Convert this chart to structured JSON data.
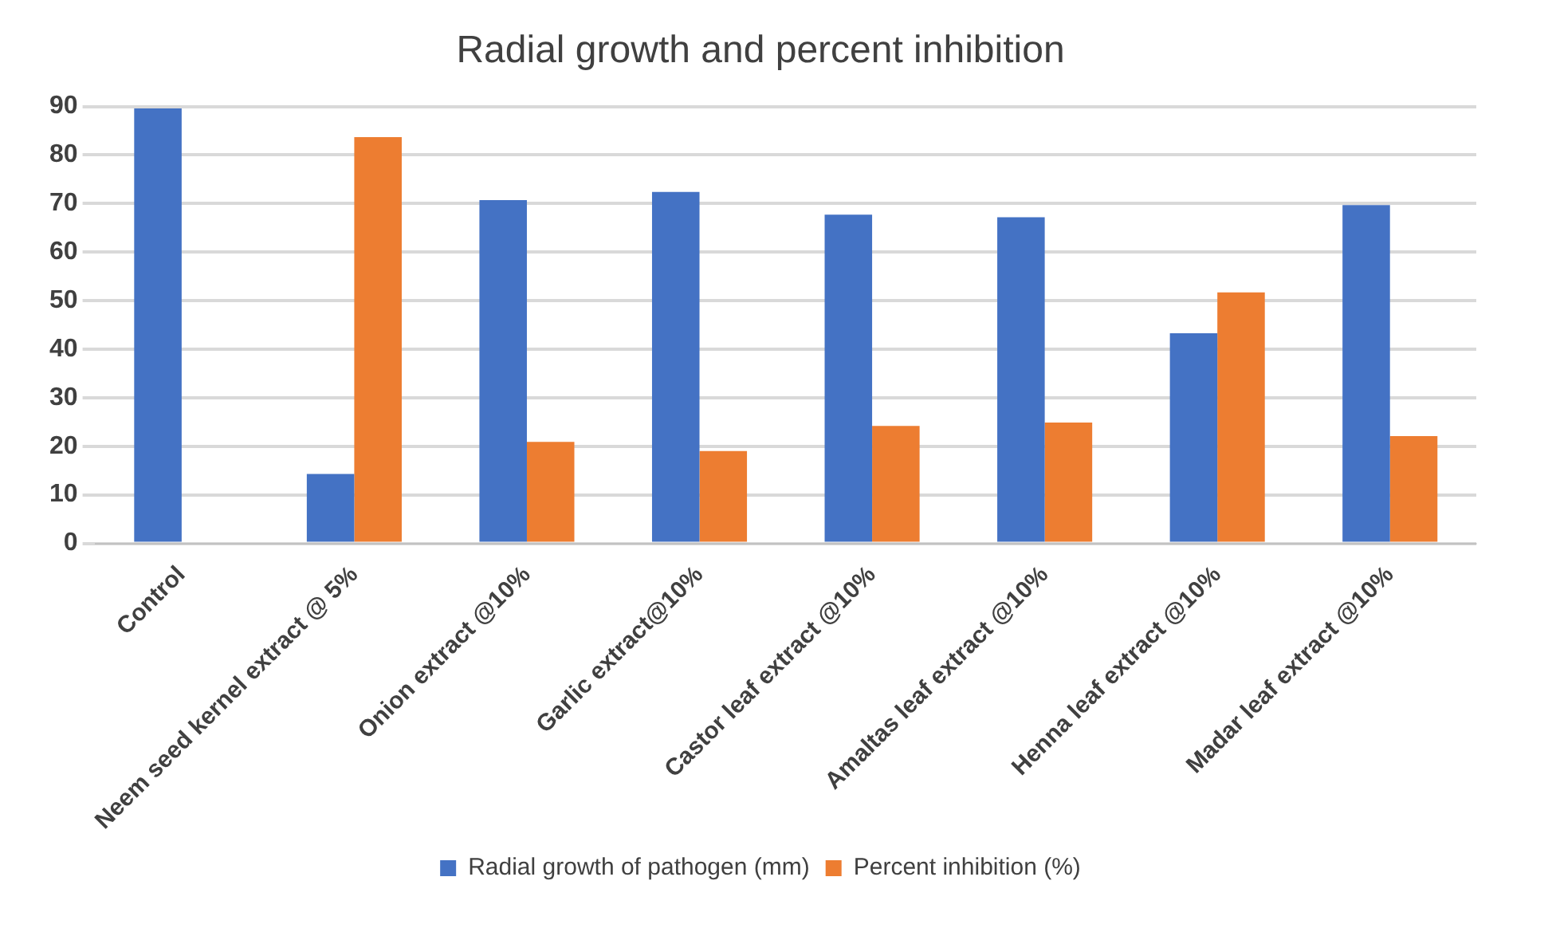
{
  "chart_data": {
    "type": "bar",
    "title": "Radial growth and percent inhibition",
    "categories": [
      "Control",
      "Neem seed kernel extract @ 5%",
      "Onion extract @10%",
      "Garlic extract@10%",
      "Castor leaf extract @10%",
      "Amaltas leaf extract @10%",
      "Henna leaf extract @10%",
      "Madar leaf extract @10%"
    ],
    "series": [
      {
        "name": "Radial growth of pathogen (mm)",
        "color": "#4472c4",
        "values": [
          89.6,
          14.3,
          70.7,
          72.4,
          67.7,
          67.2,
          43.3,
          69.7
        ]
      },
      {
        "name": "Percent inhibition (%)",
        "color": "#ed7d31",
        "values": [
          0,
          83.7,
          20.9,
          19.0,
          24.2,
          24.9,
          51.7,
          22.1
        ]
      }
    ],
    "ylim": [
      0,
      90
    ],
    "yticks": [
      0,
      10,
      20,
      30,
      40,
      50,
      60,
      70,
      80,
      90
    ],
    "grid": "y",
    "legend": "bottom"
  }
}
